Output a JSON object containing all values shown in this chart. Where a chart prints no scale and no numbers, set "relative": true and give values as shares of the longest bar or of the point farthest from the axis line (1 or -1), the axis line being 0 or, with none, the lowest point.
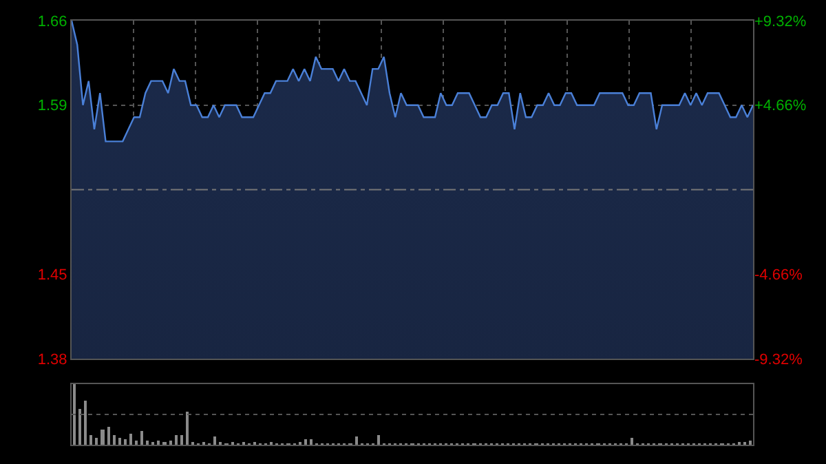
{
  "chart_data": [
    {
      "type": "area",
      "categories": [
        null,
        null,
        null,
        null,
        null,
        null,
        null,
        null,
        null,
        null,
        null,
        null,
        null,
        null,
        null,
        null,
        null,
        null,
        null,
        null,
        null,
        null,
        null,
        null,
        null,
        null,
        null,
        null,
        null,
        null,
        null,
        null,
        null,
        null,
        null,
        null,
        null,
        null,
        null,
        null,
        null,
        null,
        null,
        null,
        null,
        null,
        null,
        null,
        null,
        null,
        null,
        null,
        null,
        null,
        null,
        null,
        null,
        null,
        null,
        null,
        null,
        null,
        null,
        null,
        null,
        null,
        null,
        null,
        null,
        null,
        null,
        null,
        null,
        null,
        null,
        null,
        null,
        null,
        null,
        null,
        null,
        null,
        null,
        null,
        null,
        null,
        null,
        null,
        null,
        null,
        null,
        null,
        null,
        null,
        null,
        null,
        null,
        null,
        null,
        null,
        null,
        null,
        null,
        null,
        null,
        null,
        null,
        null,
        null,
        null,
        null,
        null,
        null,
        null,
        null,
        null,
        null,
        null,
        null,
        null,
        null
      ],
      "series": [
        {
          "color": "#4a80d8",
          "values": [
            1.66,
            1.64,
            1.59,
            1.61,
            1.57,
            1.6,
            1.56,
            1.56,
            1.56,
            1.56,
            1.57,
            1.58,
            1.58,
            1.6,
            1.61,
            1.61,
            1.61,
            1.6,
            1.62,
            1.61,
            1.61,
            1.59,
            1.59,
            1.58,
            1.58,
            1.59,
            1.58,
            1.59,
            1.59,
            1.59,
            1.58,
            1.58,
            1.58,
            1.59,
            1.6,
            1.6,
            1.61,
            1.61,
            1.61,
            1.62,
            1.61,
            1.62,
            1.61,
            1.63,
            1.62,
            1.62,
            1.62,
            1.61,
            1.62,
            1.61,
            1.61,
            1.6,
            1.59,
            1.62,
            1.62,
            1.63,
            1.6,
            1.58,
            1.6,
            1.59,
            1.59,
            1.59,
            1.58,
            1.58,
            1.58,
            1.6,
            1.59,
            1.59,
            1.6,
            1.6,
            1.6,
            1.59,
            1.58,
            1.58,
            1.59,
            1.59,
            1.6,
            1.6,
            1.57,
            1.6,
            1.58,
            1.58,
            1.59,
            1.59,
            1.6,
            1.59,
            1.59,
            1.6,
            1.6,
            1.59,
            1.59,
            1.59,
            1.59,
            1.6,
            1.6,
            1.6,
            1.6,
            1.6,
            1.59,
            1.59,
            1.6,
            1.6,
            1.6,
            1.57,
            1.59,
            1.59,
            1.59,
            1.59,
            1.6,
            1.59,
            1.6,
            1.59,
            1.6,
            1.6,
            1.6,
            1.59,
            1.58,
            1.58,
            1.59,
            1.58,
            1.59
          ]
        }
      ],
      "ylim": [
        1.38,
        1.66
      ],
      "yticks": [
        1.38,
        1.45,
        1.59,
        1.66
      ],
      "y2lim": [
        -9.32,
        9.32
      ],
      "y2ticks": [
        {
          "value": -9.32,
          "label": "-9.32%"
        },
        {
          "value": -4.66,
          "label": "-4.66%"
        },
        {
          "value": 4.66,
          "label": "+4.66%"
        },
        {
          "value": 9.32,
          "label": "+9.32%"
        }
      ],
      "ref_lines": [
        {
          "axis": "y",
          "value": 1.52,
          "line_style": "dashed"
        }
      ],
      "grid": true,
      "marker": "none",
      "line_style": "solid"
    },
    {
      "type": "bar",
      "relative": true,
      "categories": [
        null,
        null,
        null,
        null,
        null,
        null,
        null,
        null,
        null,
        null,
        null,
        null,
        null,
        null,
        null,
        null,
        null,
        null,
        null,
        null,
        null,
        null,
        null,
        null,
        null,
        null,
        null,
        null,
        null,
        null,
        null,
        null,
        null,
        null,
        null,
        null,
        null,
        null,
        null,
        null,
        null,
        null,
        null,
        null,
        null,
        null,
        null,
        null,
        null,
        null,
        null,
        null,
        null,
        null,
        null,
        null,
        null,
        null,
        null,
        null,
        null,
        null,
        null,
        null,
        null,
        null,
        null,
        null,
        null,
        null,
        null,
        null,
        null,
        null,
        null,
        null,
        null,
        null,
        null,
        null,
        null,
        null,
        null,
        null,
        null,
        null,
        null,
        null,
        null,
        null,
        null,
        null,
        null,
        null,
        null,
        null,
        null,
        null,
        null,
        null,
        null,
        null,
        null,
        null,
        null,
        null,
        null,
        null,
        null,
        null,
        null,
        null,
        null,
        null,
        null,
        null,
        null,
        null,
        null,
        null,
        null
      ],
      "series": [
        {
          "color": "#8a8a8a",
          "values": [
            1.0,
            0.6,
            0.72,
            0.15,
            0.12,
            0.25,
            0.3,
            0.15,
            0.12,
            0.1,
            0.18,
            0.08,
            0.22,
            0.06,
            0.05,
            0.08,
            0.04,
            0.06,
            0.15,
            0.15,
            0.55,
            0.04,
            0.03,
            0.04,
            0.03,
            0.13,
            0.05,
            0.03,
            0.04,
            0.03,
            0.05,
            0.03,
            0.04,
            0.03,
            0.02,
            0.04,
            0.03,
            0.03,
            0.02,
            0.03,
            0.04,
            0.1,
            0.1,
            0.03,
            0.02,
            0.03,
            0.02,
            0.03,
            0.02,
            0.03,
            0.13,
            0.03,
            0.02,
            0.03,
            0.15,
            0.03,
            0.02,
            0.03,
            0.02,
            0.02,
            0.03,
            0.02,
            0.02,
            0.03,
            0.02,
            0.02,
            0.02,
            0.03,
            0.02,
            0.02,
            0.02,
            0.03,
            0.02,
            0.02,
            0.02,
            0.03,
            0.02,
            0.02,
            0.03,
            0.02,
            0.02,
            0.02,
            0.03,
            0.02,
            0.02,
            0.02,
            0.03,
            0.02,
            0.02,
            0.02,
            0.03,
            0.02,
            0.02,
            0.03,
            0.02,
            0.02,
            0.03,
            0.02,
            0.03,
            0.12,
            0.03,
            0.02,
            0.02,
            0.03,
            0.02,
            0.02,
            0.03,
            0.02,
            0.02,
            0.02,
            0.03,
            0.02,
            0.02,
            0.02,
            0.03,
            0.02,
            0.03,
            0.02,
            0.04,
            0.05,
            0.08
          ]
        }
      ],
      "ref_lines": [
        {
          "axis": "y",
          "value": 0.5,
          "line_style": "dotted"
        }
      ]
    }
  ]
}
